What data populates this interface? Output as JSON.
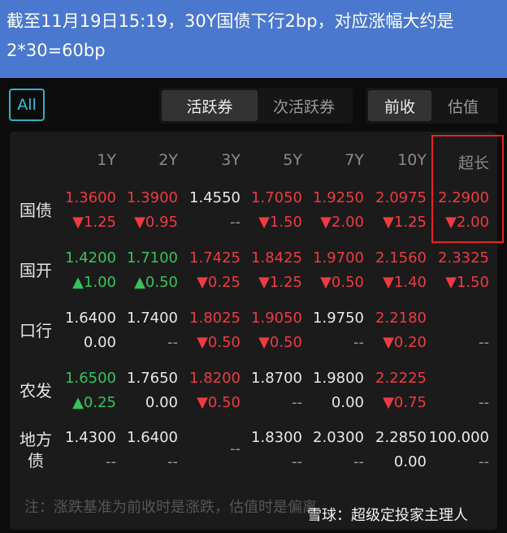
{
  "banner": {
    "text": "截至11月19日15:19，30Y国债下行2bp，对应涨幅大约是2*30=60bp"
  },
  "filter": {
    "all_label": "All",
    "tabs": [
      "活跃券",
      "次活跃券"
    ],
    "modes": [
      "前收",
      "估值"
    ],
    "active_tab": "活跃券",
    "active_mode": "前收"
  },
  "table": {
    "columns": [
      "1Y",
      "2Y",
      "3Y",
      "5Y",
      "7Y",
      "10Y",
      "超长"
    ],
    "highlight_column": "超长",
    "highlight_color": "#e8231f",
    "rows": [
      {
        "label": "国债",
        "values": [
          [
            "1.3600",
            "r",
            "▼1.25",
            "r"
          ],
          [
            "1.3900",
            "r",
            "▼0.95",
            "r"
          ],
          [
            "1.4550",
            "w",
            "--",
            "d"
          ],
          [
            "1.7050",
            "r",
            "▼1.50",
            "r"
          ],
          [
            "1.9250",
            "r",
            "▼2.00",
            "r"
          ],
          [
            "2.0975",
            "r",
            "▼1.25",
            "r"
          ],
          [
            "2.2900",
            "r",
            "▼2.00",
            "r"
          ]
        ]
      },
      {
        "label": "国开",
        "values": [
          [
            "1.4200",
            "g",
            "▲1.00",
            "g"
          ],
          [
            "1.7100",
            "g",
            "▲0.50",
            "g"
          ],
          [
            "1.7425",
            "r",
            "▼0.25",
            "r"
          ],
          [
            "1.8425",
            "r",
            "▼1.25",
            "r"
          ],
          [
            "1.9700",
            "r",
            "▼0.50",
            "r"
          ],
          [
            "2.1560",
            "r",
            "▼1.40",
            "r"
          ],
          [
            "2.3325",
            "r",
            "▼1.50",
            "r"
          ]
        ]
      },
      {
        "label": "口行",
        "values": [
          [
            "1.6400",
            "w",
            "0.00",
            "w"
          ],
          [
            "1.7400",
            "w",
            "--",
            "d"
          ],
          [
            "1.8025",
            "r",
            "▼0.50",
            "r"
          ],
          [
            "1.9050",
            "r",
            "▼0.50",
            "r"
          ],
          [
            "1.9750",
            "w",
            "--",
            "d"
          ],
          [
            "2.2180",
            "r",
            "▼0.20",
            "r"
          ],
          [
            "",
            "w",
            "--",
            "d"
          ]
        ]
      },
      {
        "label": "农发",
        "values": [
          [
            "1.6500",
            "g",
            "▲0.25",
            "g"
          ],
          [
            "1.7650",
            "w",
            "0.00",
            "w"
          ],
          [
            "1.8200",
            "r",
            "▼0.50",
            "r"
          ],
          [
            "1.8700",
            "w",
            "--",
            "d"
          ],
          [
            "1.9800",
            "w",
            "0.00",
            "w"
          ],
          [
            "2.2225",
            "r",
            "▼0.75",
            "r"
          ],
          [
            "",
            "w",
            "--",
            "d"
          ]
        ]
      },
      {
        "label": "地方债",
        "values": [
          [
            "1.4300",
            "w",
            "--",
            "d"
          ],
          [
            "1.6400",
            "w",
            "--",
            "d"
          ],
          [
            "",
            "w",
            "--",
            "d"
          ],
          [
            "1.8300",
            "w",
            "--",
            "d"
          ],
          [
            "2.0300",
            "w",
            "--",
            "d"
          ],
          [
            "2.2850",
            "w",
            "0.00",
            "w"
          ],
          [
            "100.000",
            "w",
            "--",
            "d"
          ]
        ]
      }
    ]
  },
  "note": "注：涨跌基准为前收时是涨跌，估值时是偏离",
  "watermark": "雪球：超级定投家主理人",
  "colors": {
    "up": "#ef3a42",
    "down": "#36c35b",
    "accent": "#36c4d6",
    "banner": "#4a78cf"
  }
}
